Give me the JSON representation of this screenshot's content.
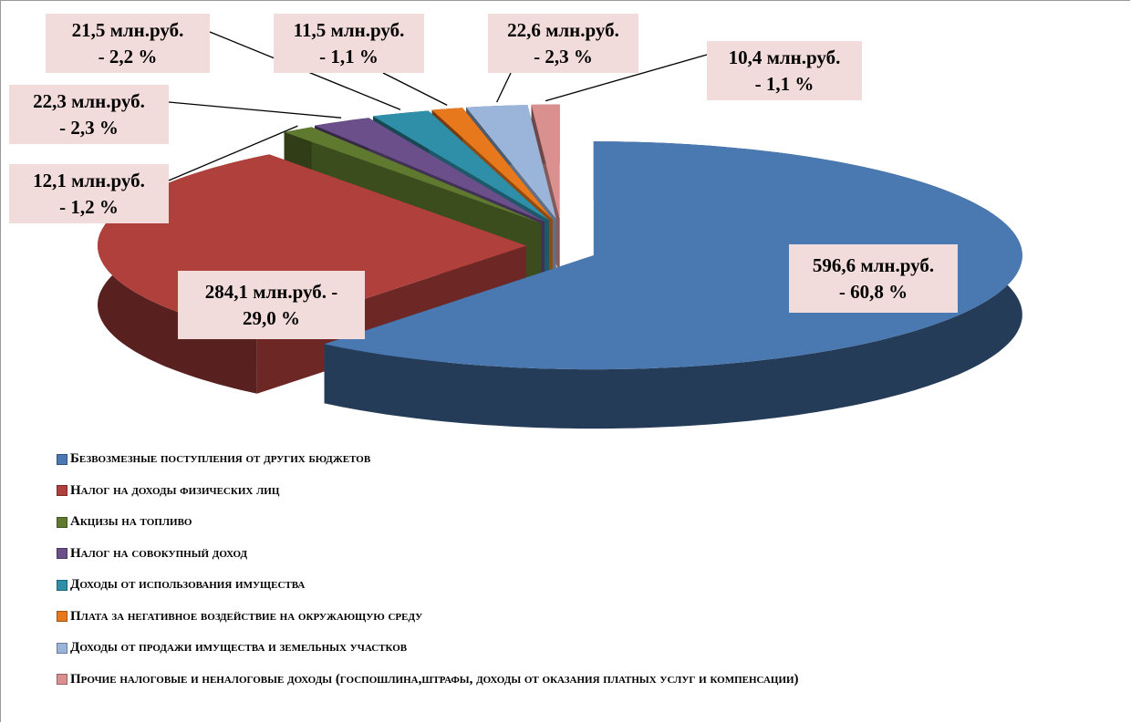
{
  "chart_data": {
    "type": "pie",
    "categories": [
      "Безвозмезные поступления  от других бюджетов",
      "Налог на доходы физических лиц",
      "Акцизы на топливо",
      "Налог на совокупный доход",
      "Доходы от использования  имущества",
      "Плата за негативное  воздействие на окружающую среду",
      "Доходы от продажи имущества и земельных  участков",
      "Прочие налоговые  и неналоговые доходы (госпошлина,штрафы, доходы от оказания платных услуг и компенсации)"
    ],
    "values": [
      596.6,
      284.1,
      12.1,
      22.3,
      21.5,
      11.5,
      22.6,
      10.4
    ],
    "value_labels": [
      "596,6 млн.руб.\n- 60,8 %",
      "284,1 млн.руб. -\n29,0 %",
      "12,1 млн.руб.\n- 1,2 %",
      "22,3 млн.руб.\n- 2,3 %",
      "21,5  млн.руб.\n- 2,2 %",
      "11,5 млн.руб.\n- 1,1 %",
      "22,6 млн.руб.\n- 2,3 %",
      "10,4 млн.руб.\n- 1,1 %"
    ],
    "colors": [
      "#4a78b0",
      "#b0403c",
      "#5f7a2e",
      "#6a4f8a",
      "#2f8fa8",
      "#e7781c",
      "#9ab5d9",
      "#d9908e"
    ],
    "legend": "bottom"
  }
}
